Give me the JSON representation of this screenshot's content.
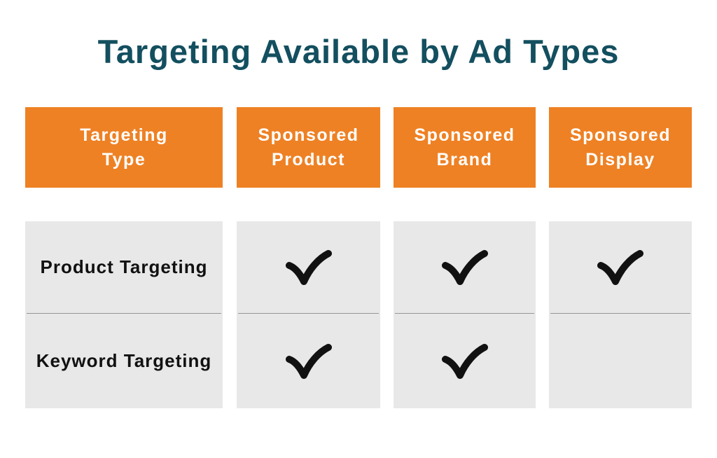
{
  "title": "Targeting Available by Ad Types",
  "ui": {
    "headers": [
      "Targeting\nType",
      "Sponsored\nProduct",
      "Sponsored\nBrand",
      "Sponsored\nDisplay"
    ]
  },
  "chart_data": {
    "type": "table",
    "title": "Targeting Available by Ad Types",
    "columns": [
      "Targeting Type",
      "Sponsored Product",
      "Sponsored Brand",
      "Sponsored Display"
    ],
    "rows": [
      [
        "Product Targeting",
        true,
        true,
        true
      ],
      [
        "Keyword Targeting",
        true,
        true,
        false
      ]
    ],
    "check_symbol": "✓"
  },
  "icons": {
    "checkmark-icon": "✓"
  },
  "colors": {
    "title_color": "#134f5f",
    "header_bg": "#ee8124",
    "header_text": "#ffffff",
    "cell_bg": "#e8e8e8",
    "divider": "#969696",
    "label_color": "#111111",
    "check_color": "#111111"
  }
}
